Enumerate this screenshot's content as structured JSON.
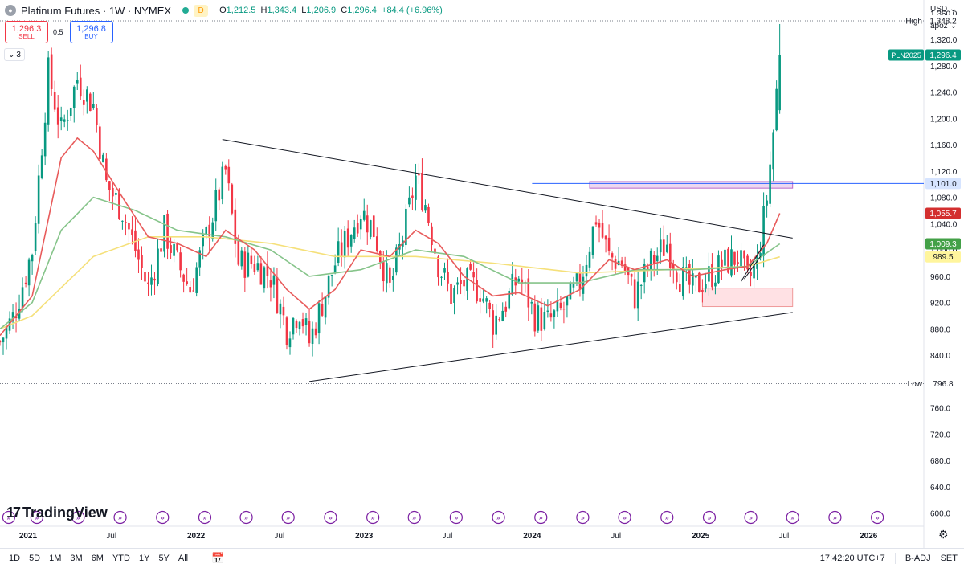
{
  "header": {
    "symbol_icon": "platinum-coin-icon",
    "title": "Platinum Futures · 1W · NYMEX",
    "badge": "D",
    "ohlc": {
      "o_label": "O",
      "o": "1,212.5",
      "h_label": "H",
      "h": "1,343.4",
      "l_label": "L",
      "l": "1,206.9",
      "c_label": "C",
      "c": "1,296.4",
      "change": "+84.4 (+6.96%)"
    }
  },
  "trade": {
    "sell_price": "1,296.3",
    "sell_label": "SELL",
    "spread": "0.5",
    "buy_price": "1,296.8",
    "buy_label": "BUY"
  },
  "indicators_collapse": "3",
  "price_scale": {
    "currency": "USD",
    "mode": "apoz"
  },
  "labels": {
    "high_text": "High",
    "high_value": "1,348.2",
    "low_text": "Low",
    "low_value": "796.8",
    "symbol_tag": "PLN2025",
    "last_value": "1,296.4",
    "hline_value": "1,101.0",
    "ema_red_value": "1,055.7",
    "ema_green_value": "1,009.3",
    "ema_yellow_value": "989.5"
  },
  "colors": {
    "up": "#089981",
    "down": "#f23645",
    "ema_red": "#e85b5b",
    "ema_green": "#86c48a",
    "ema_yellow": "#f5e07a",
    "hline": "#2962ff",
    "last_tag": "#089981",
    "ema_red_tag": "#d32f2f",
    "ema_green_tag": "#43a047",
    "ema_yellow_tag": "#fff59d",
    "zone_purple": "#e1bee7",
    "zone_red": "#ffcdd2"
  },
  "logo_text": "TradingView",
  "bottom": {
    "ranges": [
      "1D",
      "5D",
      "1M",
      "3M",
      "6M",
      "YTD",
      "1Y",
      "5Y",
      "All"
    ],
    "calendar_icon": "calendar-icon",
    "time": "17:42:20 UTC+7",
    "adj": "B-ADJ",
    "session": "SET"
  },
  "chart_data": {
    "type": "candlestick",
    "symbol": "Platinum Futures",
    "interval": "1W",
    "exchange": "NYMEX",
    "ylim": [
      580,
      1380
    ],
    "y_ticks": [
      600,
      640,
      680,
      720,
      760,
      800,
      840,
      880,
      920,
      960,
      1000,
      1040,
      1080,
      1120,
      1160,
      1200,
      1240,
      1280,
      1320,
      1360,
      1400
    ],
    "x_range": [
      "2020-11-01",
      "2026-05-01"
    ],
    "x_ticks": [
      {
        "date": "2021-01-01",
        "label": "2021",
        "bold": true
      },
      {
        "date": "2021-07-01",
        "label": "Jul"
      },
      {
        "date": "2022-01-01",
        "label": "2022",
        "bold": true
      },
      {
        "date": "2022-07-01",
        "label": "Jul"
      },
      {
        "date": "2023-01-01",
        "label": "2023",
        "bold": true
      },
      {
        "date": "2023-07-01",
        "label": "Jul"
      },
      {
        "date": "2024-01-01",
        "label": "2024",
        "bold": true
      },
      {
        "date": "2024-07-01",
        "label": "Jul"
      },
      {
        "date": "2025-01-01",
        "label": "2025",
        "bold": true
      },
      {
        "date": "2025-07-01",
        "label": "Jul"
      },
      {
        "date": "2026-01-01",
        "label": "2026",
        "bold": true
      }
    ],
    "close_path": [
      [
        "2020-11-01",
        860
      ],
      [
        "2020-12-01",
        900
      ],
      [
        "2021-01-10",
        1000
      ],
      [
        "2021-02-14",
        1270
      ],
      [
        "2021-03-14",
        1180
      ],
      [
        "2021-04-18",
        1260
      ],
      [
        "2021-05-23",
        1220
      ],
      [
        "2021-06-20",
        1100
      ],
      [
        "2021-07-25",
        1060
      ],
      [
        "2021-08-22",
        1000
      ],
      [
        "2021-09-19",
        940
      ],
      [
        "2021-10-24",
        1030
      ],
      [
        "2021-11-21",
        980
      ],
      [
        "2021-12-19",
        940
      ],
      [
        "2022-01-23",
        1020
      ],
      [
        "2022-03-06",
        1120
      ],
      [
        "2022-04-03",
        980
      ],
      [
        "2022-05-08",
        980
      ],
      [
        "2022-06-12",
        960
      ],
      [
        "2022-07-17",
        880
      ],
      [
        "2022-08-14",
        910
      ],
      [
        "2022-09-04",
        860
      ],
      [
        "2022-10-02",
        920
      ],
      [
        "2022-10-30",
        980
      ],
      [
        "2022-11-27",
        1020
      ],
      [
        "2022-12-25",
        1060
      ],
      [
        "2023-01-22",
        1030
      ],
      [
        "2023-02-26",
        940
      ],
      [
        "2023-04-02",
        1040
      ],
      [
        "2023-04-23",
        1110
      ],
      [
        "2023-05-14",
        1070
      ],
      [
        "2023-06-11",
        980
      ],
      [
        "2023-07-09",
        930
      ],
      [
        "2023-08-06",
        950
      ],
      [
        "2023-09-10",
        940
      ],
      [
        "2023-10-08",
        890
      ],
      [
        "2023-11-05",
        920
      ],
      [
        "2023-12-03",
        960
      ],
      [
        "2024-01-07",
        900
      ],
      [
        "2024-02-04",
        890
      ],
      [
        "2024-03-10",
        910
      ],
      [
        "2024-04-14",
        950
      ],
      [
        "2024-05-19",
        1050
      ],
      [
        "2024-06-16",
        990
      ],
      [
        "2024-07-14",
        980
      ],
      [
        "2024-08-11",
        930
      ],
      [
        "2024-09-15",
        980
      ],
      [
        "2024-10-20",
        1010
      ],
      [
        "2024-11-17",
        960
      ],
      [
        "2024-12-15",
        940
      ],
      [
        "2025-01-19",
        960
      ],
      [
        "2025-02-23",
        980
      ],
      [
        "2025-03-23",
        990
      ],
      [
        "2025-04-13",
        950
      ],
      [
        "2025-05-04",
        980
      ],
      [
        "2025-05-25",
        1080
      ],
      [
        "2025-06-08",
        1180
      ],
      [
        "2025-06-15",
        1240
      ],
      [
        "2025-06-22",
        1296
      ]
    ],
    "ema_red": [
      [
        "2020-11-01",
        870
      ],
      [
        "2021-01-10",
        930
      ],
      [
        "2021-03-14",
        1140
      ],
      [
        "2021-04-18",
        1170
      ],
      [
        "2021-05-23",
        1150
      ],
      [
        "2021-07-25",
        1080
      ],
      [
        "2021-09-19",
        1020
      ],
      [
        "2021-11-21",
        1010
      ],
      [
        "2022-01-23",
        990
      ],
      [
        "2022-03-06",
        1030
      ],
      [
        "2022-05-08",
        1000
      ],
      [
        "2022-07-17",
        940
      ],
      [
        "2022-09-04",
        910
      ],
      [
        "2022-10-30",
        940
      ],
      [
        "2022-12-25",
        1000
      ],
      [
        "2023-02-26",
        990
      ],
      [
        "2023-04-23",
        1030
      ],
      [
        "2023-06-11",
        1010
      ],
      [
        "2023-08-06",
        960
      ],
      [
        "2023-10-08",
        930
      ],
      [
        "2023-12-03",
        935
      ],
      [
        "2024-02-04",
        915
      ],
      [
        "2024-04-14",
        940
      ],
      [
        "2024-06-16",
        985
      ],
      [
        "2024-08-11",
        970
      ],
      [
        "2024-10-20",
        985
      ],
      [
        "2024-12-15",
        960
      ],
      [
        "2025-02-23",
        970
      ],
      [
        "2025-04-13",
        975
      ],
      [
        "2025-05-25",
        1010
      ],
      [
        "2025-06-22",
        1055.7
      ]
    ],
    "ema_green": [
      [
        "2020-11-01",
        880
      ],
      [
        "2021-01-10",
        920
      ],
      [
        "2021-03-14",
        1030
      ],
      [
        "2021-05-23",
        1080
      ],
      [
        "2021-08-22",
        1060
      ],
      [
        "2021-11-21",
        1030
      ],
      [
        "2022-03-06",
        1020
      ],
      [
        "2022-06-12",
        1000
      ],
      [
        "2022-09-04",
        960
      ],
      [
        "2022-12-25",
        970
      ],
      [
        "2023-04-23",
        1000
      ],
      [
        "2023-08-06",
        990
      ],
      [
        "2023-12-03",
        950
      ],
      [
        "2024-04-14",
        950
      ],
      [
        "2024-08-11",
        970
      ],
      [
        "2024-12-15",
        970
      ],
      [
        "2025-04-13",
        975
      ],
      [
        "2025-06-22",
        1009.3
      ]
    ],
    "ema_yellow": [
      [
        "2020-11-01",
        880
      ],
      [
        "2021-01-10",
        900
      ],
      [
        "2021-05-23",
        990
      ],
      [
        "2021-09-19",
        1020
      ],
      [
        "2022-01-23",
        1020
      ],
      [
        "2022-06-12",
        1010
      ],
      [
        "2022-10-30",
        990
      ],
      [
        "2023-04-23",
        990
      ],
      [
        "2023-10-08",
        980
      ],
      [
        "2024-04-14",
        965
      ],
      [
        "2024-10-20",
        970
      ],
      [
        "2025-04-13",
        975
      ],
      [
        "2025-06-22",
        989.5
      ]
    ],
    "trendlines": [
      {
        "from": [
          "2022-02-27",
          1168
        ],
        "to": [
          "2025-07-20",
          1018
        ]
      },
      {
        "from": [
          "2022-09-04",
          800
        ],
        "to": [
          "2025-07-20",
          905
        ]
      },
      {
        "from": [
          "2025-03-30",
          952
        ],
        "to": [
          "2025-05-18",
          1008
        ]
      },
      {
        "from": [
          "2025-04-06",
          956
        ],
        "to": [
          "2025-05-11",
          990
        ]
      }
    ],
    "high_line": 1348.2,
    "low_line": 796.8,
    "last_line": 1296.4,
    "hline": {
      "value": 1101.0,
      "from": "2024-01-01"
    },
    "zones": [
      {
        "color": "purple",
        "from": [
          "2024-05-05",
          1104
        ],
        "to": [
          "2025-07-20",
          1094
        ]
      },
      {
        "color": "red",
        "from": [
          "2025-01-05",
          942
        ],
        "to": [
          "2025-07-20",
          914
        ]
      }
    ],
    "event_markers": [
      "2020-11-20",
      "2021-01-20",
      "2021-04-20",
      "2021-07-20",
      "2021-10-20",
      "2022-01-20",
      "2022-04-20",
      "2022-07-20",
      "2022-10-20",
      "2023-01-20",
      "2023-04-20",
      "2023-07-20",
      "2023-10-20",
      "2024-01-20",
      "2024-04-20",
      "2024-07-20",
      "2024-10-20",
      "2025-01-20",
      "2025-04-20",
      "2025-07-20",
      "2025-10-20",
      "2026-01-20",
      "2026-04-20"
    ]
  }
}
